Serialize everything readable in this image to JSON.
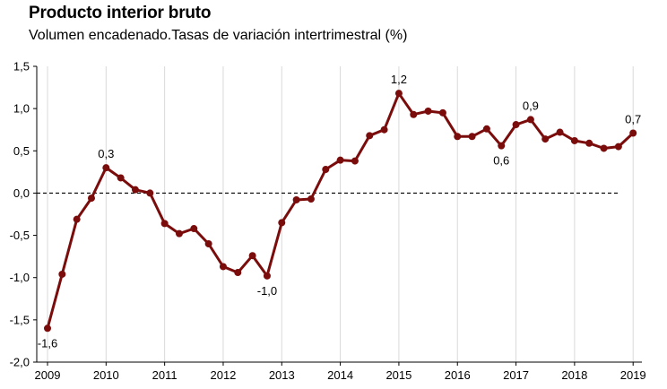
{
  "chart_data": {
    "type": "line",
    "title": "Producto interior bruto",
    "subtitle": "Volumen encadenado.Tasas de variación intertrimestral (%)",
    "xlabel": "",
    "ylabel": "",
    "ylim": [
      -2.0,
      1.5
    ],
    "yticks": [
      1.5,
      1.0,
      0.5,
      0.0,
      -0.5,
      -1.0,
      -1.5,
      -2.0
    ],
    "ytick_labels": [
      "1,5",
      "1,0",
      "0,5",
      "0,0",
      "-0,5",
      "-1,0",
      "-1,5",
      "-2,0"
    ],
    "xtick_labels": [
      "2009",
      "2010",
      "2011",
      "2012",
      "2013",
      "2014",
      "2015",
      "2016",
      "2017",
      "2018",
      "2019"
    ],
    "grid": "vertical",
    "reference_line": {
      "y": 0.0,
      "style": "dashed"
    },
    "color": "#7b0c0c",
    "series": [
      {
        "name": "PIB",
        "values": [
          -1.6,
          -0.96,
          -0.31,
          -0.06,
          0.3,
          0.18,
          0.04,
          0.0,
          -0.36,
          -0.48,
          -0.42,
          -0.6,
          -0.87,
          -0.94,
          -0.74,
          -0.98,
          -0.35,
          -0.08,
          -0.07,
          0.28,
          0.39,
          0.38,
          0.68,
          0.75,
          1.18,
          0.93,
          0.97,
          0.95,
          0.67,
          0.67,
          0.76,
          0.56,
          0.81,
          0.87,
          0.64,
          0.72,
          0.62,
          0.59,
          0.53,
          0.55,
          0.71
        ]
      }
    ],
    "annotations": [
      {
        "index": 0,
        "text": "-1,6",
        "position": "below"
      },
      {
        "index": 4,
        "text": "0,3",
        "position": "above"
      },
      {
        "index": 15,
        "text": "-1,0",
        "position": "below"
      },
      {
        "index": 24,
        "text": "1,2",
        "position": "above"
      },
      {
        "index": 31,
        "text": "0,6",
        "position": "below"
      },
      {
        "index": 33,
        "text": "0,9",
        "position": "above"
      },
      {
        "index": 40,
        "text": "0,7",
        "position": "above"
      }
    ]
  }
}
